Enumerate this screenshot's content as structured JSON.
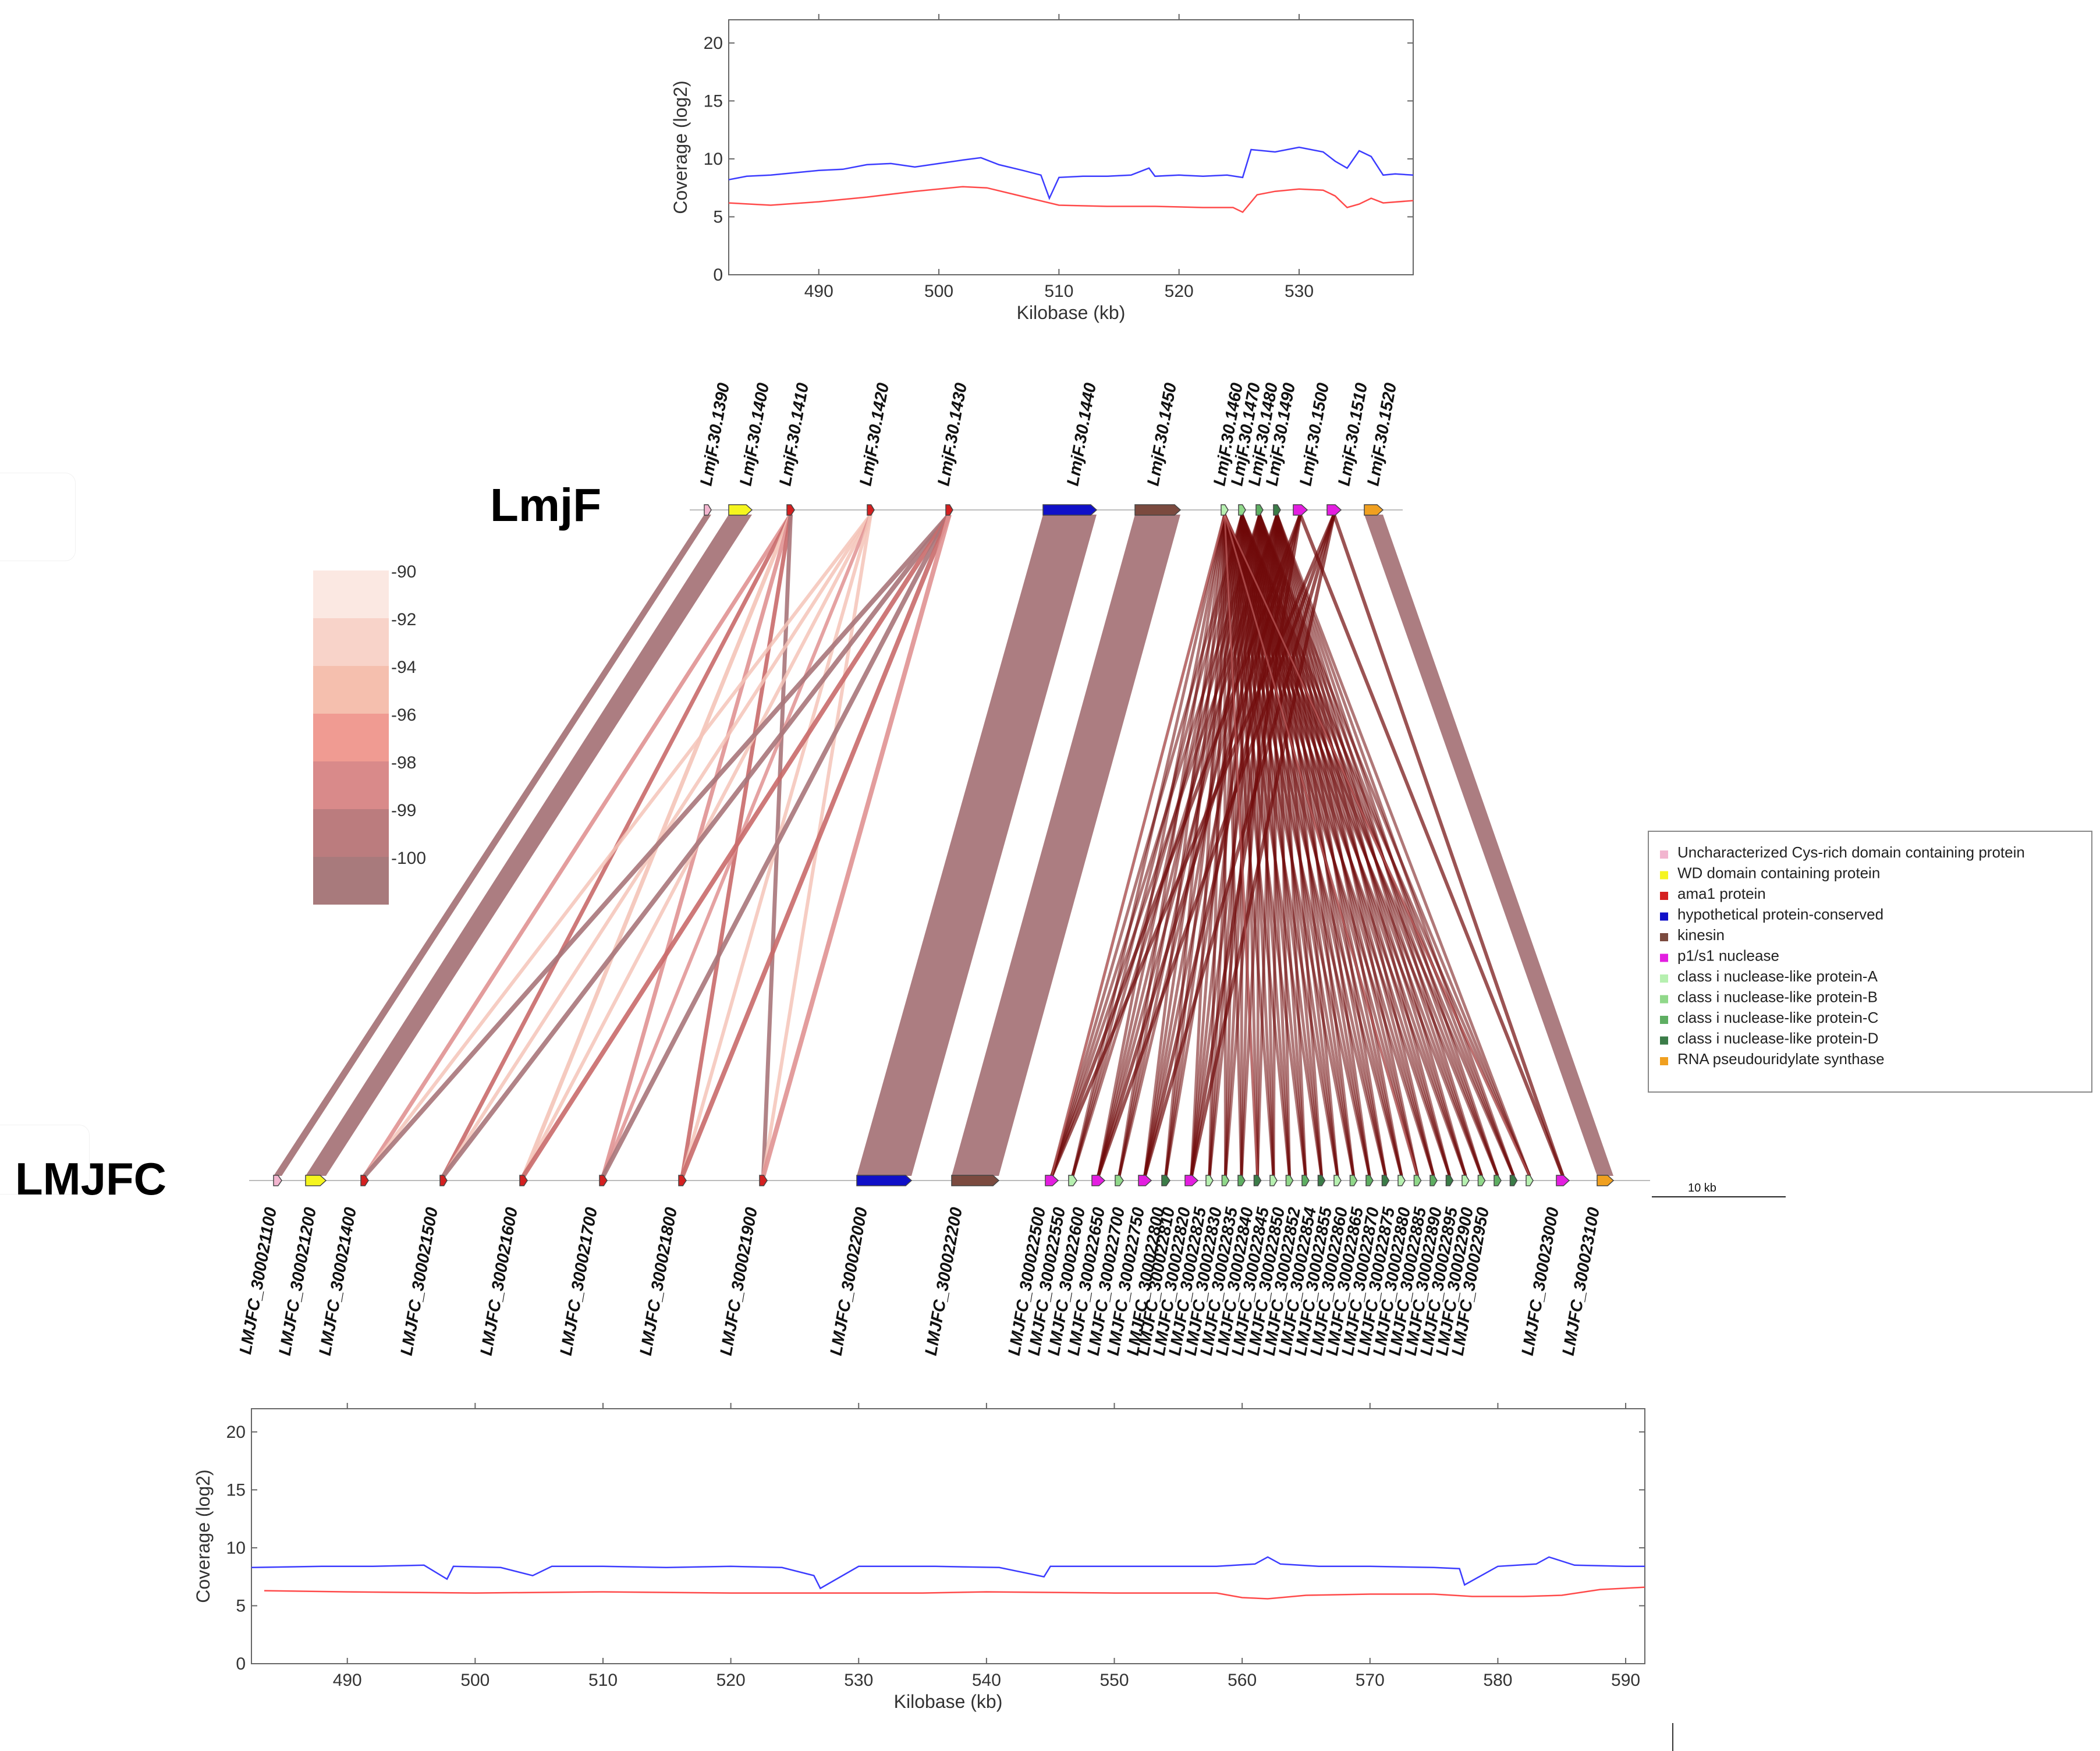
{
  "top_genome": {
    "name": "LmjF",
    "genes": [
      {
        "id": "LmjF.30.1390",
        "category": "cys"
      },
      {
        "id": "LmjF.30.1400",
        "category": "wd"
      },
      {
        "id": "LmjF.30.1410",
        "category": "ama1"
      },
      {
        "id": "LmjF.30.1420",
        "category": "ama1"
      },
      {
        "id": "LmjF.30.1430",
        "category": "ama1"
      },
      {
        "id": "LmjF.30.1440",
        "category": "hyp"
      },
      {
        "id": "LmjF.30.1450",
        "category": "kin"
      },
      {
        "id": "LmjF.30.1460",
        "category": "nA"
      },
      {
        "id": "LmjF.30.1470",
        "category": "nB"
      },
      {
        "id": "LmjF.30.1480",
        "category": "nC"
      },
      {
        "id": "LmjF.30.1490",
        "category": "nD"
      },
      {
        "id": "LmjF.30.1500",
        "category": "p1"
      },
      {
        "id": "LmjF.30.1510",
        "category": "p1"
      },
      {
        "id": "LmjF.30.1520",
        "category": "rna"
      }
    ]
  },
  "bottom_genome": {
    "name": "LMJFC",
    "genes": [
      {
        "id": "LMJFC_300021100",
        "category": "cys"
      },
      {
        "id": "LMJFC_300021200",
        "category": "wd"
      },
      {
        "id": "LMJFC_300021400",
        "category": "ama1"
      },
      {
        "id": "LMJFC_300021500",
        "category": "ama1"
      },
      {
        "id": "LMJFC_300021600",
        "category": "ama1"
      },
      {
        "id": "LMJFC_300021700",
        "category": "ama1"
      },
      {
        "id": "LMJFC_300021800",
        "category": "ama1"
      },
      {
        "id": "LMJFC_300021900",
        "category": "ama1"
      },
      {
        "id": "LMJFC_300022000",
        "category": "hyp"
      },
      {
        "id": "LMJFC_300022200",
        "category": "kin"
      },
      {
        "id": "LMJFC_300022500",
        "category": "p1"
      },
      {
        "id": "LMJFC_300022550",
        "category": "nA"
      },
      {
        "id": "LMJFC_300022600",
        "category": "p1"
      },
      {
        "id": "LMJFC_300022650",
        "category": "nB"
      },
      {
        "id": "LMJFC_300022700",
        "category": "p1"
      },
      {
        "id": "LMJFC_300022750",
        "category": "nD"
      },
      {
        "id": "LMJFC_300022800",
        "category": "p1"
      },
      {
        "id": "LMJFC_300022810",
        "category": "nA"
      },
      {
        "id": "LMJFC_300022820",
        "category": "nB"
      },
      {
        "id": "LMJFC_300022825",
        "category": "nC"
      },
      {
        "id": "LMJFC_300022830",
        "category": "nD"
      },
      {
        "id": "LMJFC_300022835",
        "category": "nA"
      },
      {
        "id": "LMJFC_300022840",
        "category": "nB"
      },
      {
        "id": "LMJFC_300022845",
        "category": "nC"
      },
      {
        "id": "LMJFC_300022850",
        "category": "nD"
      },
      {
        "id": "LMJFC_300022852",
        "category": "nA"
      },
      {
        "id": "LMJFC_300022854",
        "category": "nB"
      },
      {
        "id": "LMJFC_300022855",
        "category": "nC"
      },
      {
        "id": "LMJFC_300022860",
        "category": "nD"
      },
      {
        "id": "LMJFC_300022865",
        "category": "nA"
      },
      {
        "id": "LMJFC_300022870",
        "category": "nB"
      },
      {
        "id": "LMJFC_300022875",
        "category": "nC"
      },
      {
        "id": "LMJFC_300022880",
        "category": "nD"
      },
      {
        "id": "LMJFC_300022885",
        "category": "nA"
      },
      {
        "id": "LMJFC_300022890",
        "category": "nB"
      },
      {
        "id": "LMJFC_300022895",
        "category": "nC"
      },
      {
        "id": "LMJFC_300022900",
        "category": "nD"
      },
      {
        "id": "LMJFC_300022950",
        "category": "nA"
      },
      {
        "id": "LMJFC_300023000",
        "category": "p1"
      },
      {
        "id": "LMJFC_300023100",
        "category": "rna"
      }
    ]
  },
  "identity_scale": {
    "labels": [
      "-90",
      "-92",
      "-94",
      "-96",
      "-98",
      "-99",
      "-100"
    ],
    "colors": [
      "#fbe8e2",
      "#f8d3c9",
      "#f5bfae",
      "#f09b92",
      "#d98a8a",
      "#bb7c7e",
      "#a87a7c"
    ]
  },
  "legend": [
    {
      "key": "cys",
      "label": "Uncharacterized Cys-rich domain containing  protein",
      "color": "#f2b5cf"
    },
    {
      "key": "wd",
      "label": "WD domain containing protein",
      "color": "#f5f51e"
    },
    {
      "key": "ama1",
      "label": "ama1 protein",
      "color": "#d42020"
    },
    {
      "key": "hyp",
      "label": "hypothetical protein-conserved",
      "color": "#1010c8"
    },
    {
      "key": "kin",
      "label": "kinesin",
      "color": "#7b4a3f"
    },
    {
      "key": "p1",
      "label": "p1/s1 nuclease",
      "color": "#e31ee0"
    },
    {
      "key": "nA",
      "label": "class i nuclease-like protein-A",
      "color": "#b6f0b0"
    },
    {
      "key": "nB",
      "label": "class i nuclease-like protein-B",
      "color": "#90d88a"
    },
    {
      "key": "nC",
      "label": "class i nuclease-like protein-C",
      "color": "#5eae62"
    },
    {
      "key": "nD",
      "label": "class i nuclease-like protein-D",
      "color": "#3b7c48"
    },
    {
      "key": "rna",
      "label": "RNA  pseudouridylate synthase",
      "color": "#f0a020"
    }
  ],
  "scale_bar": {
    "label": "10 kb"
  },
  "link_colors": {
    "main": "#a8767a",
    "dense": "#700a0a",
    "light": "#f4c4b8",
    "medium": "#e09292",
    "strong": "#c96a6a"
  },
  "chart_data": [
    {
      "type": "line",
      "title": "",
      "xlabel": "Kilobase (kb)",
      "ylabel": "Coverage (log2)",
      "xlim": [
        482.5,
        539.5
      ],
      "ylim": [
        0,
        22
      ],
      "xticks": [
        490,
        500,
        510,
        520,
        530
      ],
      "yticks": [
        0,
        5,
        10,
        15,
        20
      ],
      "series": [
        {
          "name": "blue",
          "color": "#3c3cff",
          "x": [
            482.5,
            484,
            486,
            488,
            490,
            492,
            494,
            496,
            498,
            500,
            502,
            503.5,
            505,
            507,
            508.5,
            509.2,
            510,
            512,
            514,
            516,
            517.5,
            518,
            520,
            522,
            524,
            525.3,
            526,
            528,
            530,
            532,
            533,
            534,
            535,
            536,
            537,
            538,
            539.5
          ],
          "y": [
            8.2,
            8.5,
            8.6,
            8.8,
            9.0,
            9.1,
            9.5,
            9.6,
            9.3,
            9.6,
            9.9,
            10.1,
            9.5,
            9.0,
            8.6,
            6.6,
            8.4,
            8.5,
            8.5,
            8.6,
            9.2,
            8.5,
            8.6,
            8.5,
            8.6,
            8.4,
            10.8,
            10.6,
            11.0,
            10.6,
            9.8,
            9.2,
            10.7,
            10.2,
            8.6,
            8.7,
            8.6
          ]
        },
        {
          "name": "red",
          "color": "#ff4a4a",
          "x": [
            482.5,
            486,
            490,
            494,
            498,
            502,
            504,
            506,
            508,
            510,
            514,
            518,
            522,
            524.5,
            525.3,
            526.5,
            528,
            530,
            532,
            533,
            534,
            535,
            536,
            537,
            539.5
          ],
          "y": [
            6.2,
            6.0,
            6.3,
            6.7,
            7.2,
            7.6,
            7.5,
            7.0,
            6.5,
            6.0,
            5.9,
            5.9,
            5.8,
            5.8,
            5.4,
            6.9,
            7.2,
            7.4,
            7.3,
            6.8,
            5.8,
            6.1,
            6.6,
            6.2,
            6.4
          ]
        }
      ]
    },
    {
      "type": "line",
      "title": "",
      "xlabel": "Kilobase (kb)",
      "ylabel": "Coverage (log2)",
      "xlim": [
        482.5,
        591.5
      ],
      "ylim": [
        0,
        22
      ],
      "xticks": [
        490,
        500,
        510,
        520,
        530,
        540,
        550,
        560,
        570,
        580,
        590
      ],
      "yticks": [
        0,
        5,
        10,
        15,
        20
      ],
      "series": [
        {
          "name": "blue",
          "color": "#3c3cff",
          "x": [
            482.5,
            488,
            492,
            496,
            497.8,
            498.3,
            502,
            504.5,
            506,
            510,
            515,
            520,
            524,
            526.5,
            527,
            530,
            536,
            541,
            544.5,
            545,
            550,
            555,
            558,
            561,
            562,
            563,
            566,
            570,
            575,
            577,
            577.4,
            580,
            583,
            584,
            586,
            590,
            591.5
          ],
          "y": [
            8.3,
            8.4,
            8.4,
            8.5,
            7.3,
            8.4,
            8.3,
            7.6,
            8.4,
            8.4,
            8.3,
            8.4,
            8.3,
            7.6,
            6.5,
            8.4,
            8.4,
            8.3,
            7.5,
            8.4,
            8.4,
            8.4,
            8.4,
            8.6,
            9.2,
            8.6,
            8.4,
            8.4,
            8.3,
            8.2,
            6.8,
            8.4,
            8.6,
            9.2,
            8.5,
            8.4,
            8.4
          ]
        },
        {
          "name": "red",
          "color": "#ff4a4a",
          "x": [
            483.5,
            490,
            500,
            510,
            520,
            528,
            535,
            540,
            550,
            555,
            558,
            560,
            562,
            565,
            570,
            575,
            578,
            582,
            585,
            588,
            591.5
          ],
          "y": [
            6.3,
            6.2,
            6.1,
            6.2,
            6.1,
            6.1,
            6.1,
            6.2,
            6.1,
            6.1,
            6.1,
            5.7,
            5.6,
            5.9,
            6.0,
            6.0,
            5.8,
            5.8,
            5.9,
            6.4,
            6.6
          ]
        }
      ]
    }
  ]
}
